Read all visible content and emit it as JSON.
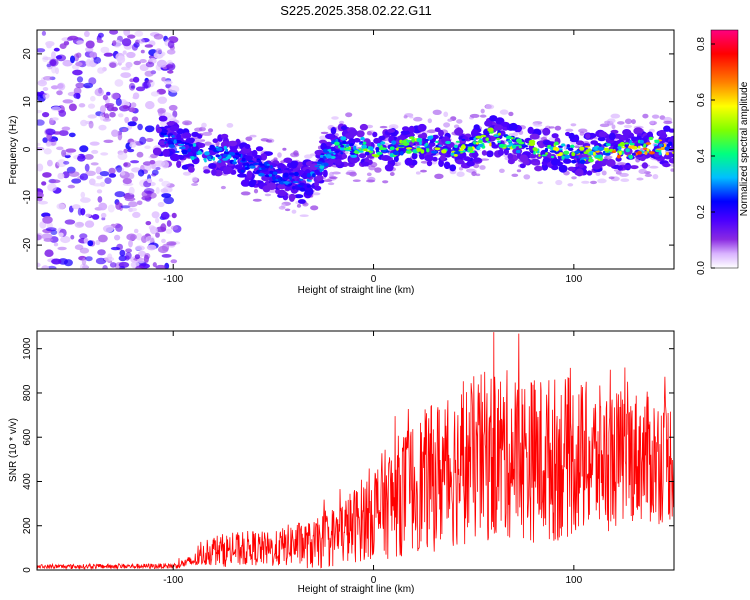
{
  "title": "S225.2025.358.02.22.G11",
  "chart_data": [
    {
      "type": "heatmap",
      "name": "spectrogram",
      "xlabel": "Height of straight line (km)",
      "ylabel": "Frequency (Hz)",
      "xlim": [
        -168,
        150
      ],
      "ylim": [
        -25,
        25
      ],
      "xticks": [
        -100,
        0,
        100
      ],
      "yticks": [
        -20,
        -10,
        0,
        10,
        20
      ],
      "xtick_labels": [
        "-100",
        "0",
        "100"
      ],
      "ytick_labels": [
        "-20",
        "-10",
        "0",
        "10",
        "20"
      ],
      "colorbar": {
        "label": "Normalized spectral amplitude",
        "range": [
          0.0,
          0.85
        ],
        "ticks": [
          0.0,
          0.2,
          0.4,
          0.6,
          0.8
        ],
        "tick_labels": [
          "0.0",
          "0.2",
          "0.4",
          "0.6",
          "0.8"
        ],
        "colormap": [
          "#ffffff",
          "#b36bff",
          "#6a00ff",
          "#0000ff",
          "#00bfff",
          "#00ff80",
          "#80ff00",
          "#ffff00",
          "#ff8000",
          "#ff0000",
          "#ff0080"
        ]
      },
      "ridge": {
        "x": [
          -105,
          -95,
          -85,
          -75,
          -65,
          -55,
          -45,
          -35,
          -30,
          -25,
          -20,
          -15,
          -10,
          -5,
          0,
          10,
          20,
          30,
          40,
          50,
          55,
          60,
          70,
          80,
          90,
          100,
          110,
          120,
          130,
          140,
          150
        ],
        "freq": [
          3,
          0,
          -1,
          -1,
          -3,
          -4,
          -6,
          -7,
          -6,
          -2,
          0,
          1,
          0,
          1,
          0,
          0,
          1,
          1,
          0,
          1,
          2,
          3,
          1,
          0,
          0,
          -1,
          -1,
          0,
          0,
          1,
          0
        ],
        "amplitude": [
          0.3,
          0.35,
          0.35,
          0.35,
          0.3,
          0.3,
          0.3,
          0.3,
          0.35,
          0.35,
          0.4,
          0.45,
          0.5,
          0.5,
          0.5,
          0.55,
          0.55,
          0.55,
          0.55,
          0.6,
          0.6,
          0.6,
          0.55,
          0.55,
          0.6,
          0.6,
          0.65,
          0.7,
          0.75,
          0.7,
          0.65
        ]
      }
    },
    {
      "type": "line",
      "name": "snr",
      "xlabel": "Height of straight line (km)",
      "ylabel": "SNR (10 * v/v)",
      "xlim": [
        -168,
        150
      ],
      "ylim": [
        0,
        1080
      ],
      "xticks": [
        -100,
        0,
        100
      ],
      "yticks": [
        0,
        200,
        400,
        600,
        800,
        1000
      ],
      "xtick_labels": [
        "-100",
        "0",
        "100"
      ],
      "ytick_labels": [
        "0",
        "200",
        "400",
        "600",
        "800",
        "1000"
      ],
      "line_color": "#ff0000",
      "envelope": {
        "x": [
          -168,
          -100,
          -90,
          -80,
          -70,
          -60,
          -50,
          -40,
          -30,
          -20,
          -10,
          0,
          10,
          20,
          30,
          40,
          50,
          60,
          70,
          80,
          90,
          100,
          110,
          120,
          130,
          140,
          150
        ],
        "mean": [
          15,
          18,
          40,
          90,
          90,
          100,
          90,
          120,
          110,
          150,
          200,
          270,
          320,
          380,
          420,
          460,
          500,
          520,
          520,
          500,
          500,
          510,
          500,
          500,
          520,
          500,
          500
        ],
        "spread": [
          10,
          12,
          30,
          70,
          80,
          80,
          80,
          100,
          110,
          140,
          170,
          220,
          270,
          300,
          340,
          360,
          380,
          400,
          380,
          380,
          380,
          360,
          340,
          320,
          300,
          300,
          280
        ]
      }
    }
  ]
}
